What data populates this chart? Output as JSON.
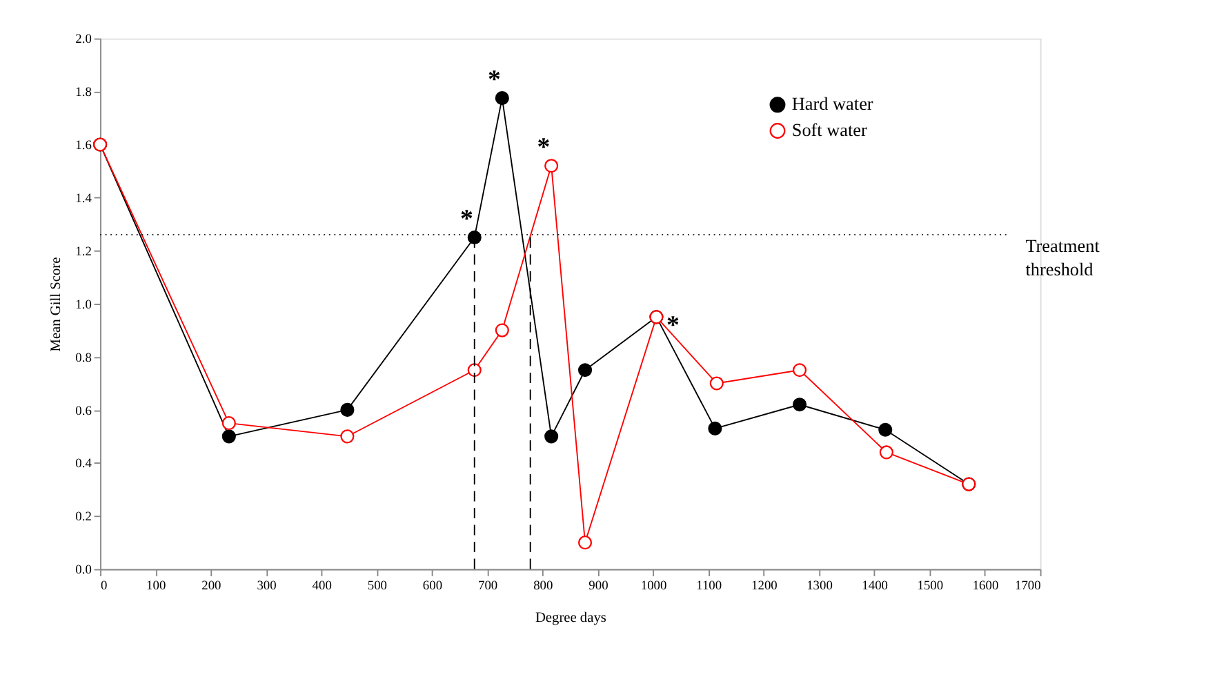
{
  "chart_data": {
    "type": "line",
    "xlabel": "Degree days",
    "ylabel": "Mean Gill Score",
    "xlim": [
      0,
      1700
    ],
    "xticks": [
      0,
      100,
      200,
      300,
      400,
      500,
      600,
      700,
      800,
      900,
      {
        "value": 1000,
        "label": "1000"
      },
      {
        "value": 1100,
        "label": "1100"
      },
      {
        "value": 1200,
        "label": "1200"
      },
      {
        "value": 1300,
        "label": "1300"
      },
      {
        "value": 1400,
        "label": "1400"
      },
      {
        "value": 1500,
        "label": "1500"
      },
      {
        "value": 1600,
        "label": "1600"
      },
      {
        "value": 1700,
        "label": "1700"
      }
    ],
    "ylim": [
      0,
      2.0
    ],
    "yticks": [
      {
        "value": 0,
        "label": "0.0"
      },
      {
        "value": 0.2,
        "label": "0.2"
      },
      {
        "value": 0.4,
        "label": "0.4"
      },
      {
        "value": 0.6,
        "label": "0.6"
      },
      {
        "value": 0.8,
        "label": "0.8"
      },
      {
        "value": 1.0,
        "label": "1.0"
      },
      {
        "value": 1.2,
        "label": "1.2"
      },
      {
        "value": 1.4,
        "label": "1.4"
      },
      {
        "value": 1.6,
        "label": "1.6"
      },
      {
        "value": 1.8,
        "label": "1.8"
      },
      {
        "value": 2.0,
        "label": "2.0"
      }
    ],
    "marker": "circle",
    "legend": "top right",
    "grid": false,
    "series": [
      {
        "name": "Hard water",
        "color": "#000000",
        "x": [
          0,
          233,
          447,
          677,
          727,
          816,
          877,
          1006,
          1112,
          1265,
          1420,
          1571
        ],
        "values": [
          1.6,
          0.5,
          0.6,
          1.25,
          1.775,
          0.5,
          0.75,
          0.95,
          0.53,
          0.62,
          0.525,
          0.32
        ]
      },
      {
        "name": "Soft water",
        "color": "#ff0000",
        "x": [
          0,
          233,
          447,
          677,
          727,
          816,
          877,
          1006,
          1115,
          1265,
          1422,
          1571
        ],
        "values": [
          1.6,
          0.55,
          0.5,
          0.75,
          0.9,
          1.52,
          0.1,
          0.95,
          0.7,
          0.75,
          0.44,
          0.32
        ]
      }
    ],
    "ref_lines": [
      {
        "axis": "y",
        "value": 1.26,
        "label": "Treatment threshold",
        "line_style": "dotted",
        "color": "#000000"
      },
      {
        "axis": "x",
        "value": 677,
        "label": null,
        "line_style": "dashed",
        "color": "#000000"
      },
      {
        "axis": "x",
        "value": 778,
        "label": null,
        "line_style": "dashed",
        "color": "#000000"
      }
    ],
    "annotations": [
      {
        "text": "*",
        "x": 677,
        "y": 1.25
      },
      {
        "text": "*",
        "x": 727,
        "y": 1.775
      },
      {
        "text": "*",
        "x": 816,
        "y": 1.52
      },
      {
        "text": "*",
        "x": 1050,
        "y": 0.85
      }
    ]
  }
}
